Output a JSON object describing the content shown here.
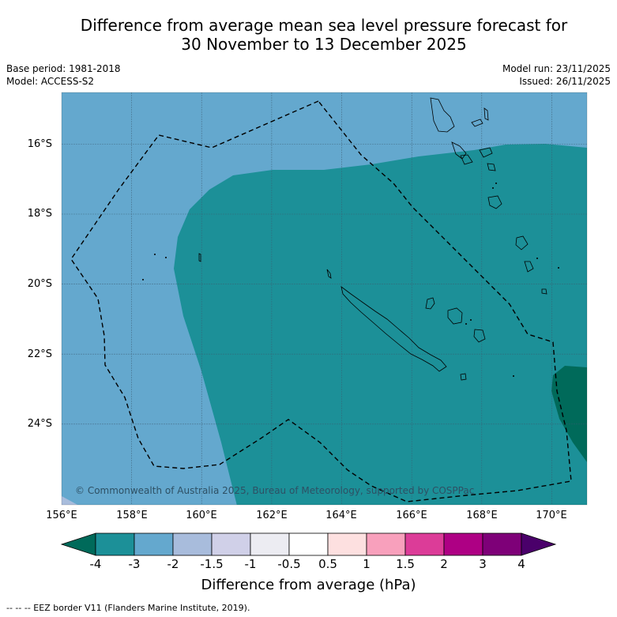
{
  "title": {
    "line1": "Difference from average mean sea level pressure forecast for",
    "line2": "30 November to 13 December 2025"
  },
  "meta": {
    "base_period": "Base period: 1981-2018",
    "model": "Model: ACCESS-S2",
    "model_run": "Model run: 23/11/2025",
    "issued": "Issued: 26/11/2025"
  },
  "map": {
    "lat_labels": [
      "16°S",
      "18°S",
      "20°S",
      "22°S",
      "24°S"
    ],
    "lon_labels": [
      "156°E",
      "158°E",
      "160°E",
      "162°E",
      "164°E",
      "166°E",
      "168°E",
      "170°E"
    ],
    "copyright": "© Commonwealth of Australia 2025, Bureau of Meteorology, supported by COSPPac",
    "colors": {
      "band_minus4_minus3": "#1c9098",
      "band_minus3_minus2": "#64a8ce",
      "band_below_minus4": "#006a5a",
      "land_outline": "#000000",
      "eez_border": "#000000"
    }
  },
  "colorbar": {
    "tick_labels": [
      "-4",
      "-3",
      "-2",
      "-1.5",
      "-1",
      "-0.5",
      "0.5",
      "1",
      "1.5",
      "2",
      "3",
      "4"
    ],
    "colors": [
      "#006a5a",
      "#1c9098",
      "#64a8ce",
      "#a8bcdc",
      "#d0d0e8",
      "#ececf2",
      "#ffffff",
      "#fde0e0",
      "#f8a0bc",
      "#dc3c98",
      "#ae0084",
      "#7e0078",
      "#4a006a"
    ],
    "title": "Difference from average (hPa)"
  },
  "footnote": "--  --  -- EEZ border V11 (Flanders Marine Institute, 2019)."
}
